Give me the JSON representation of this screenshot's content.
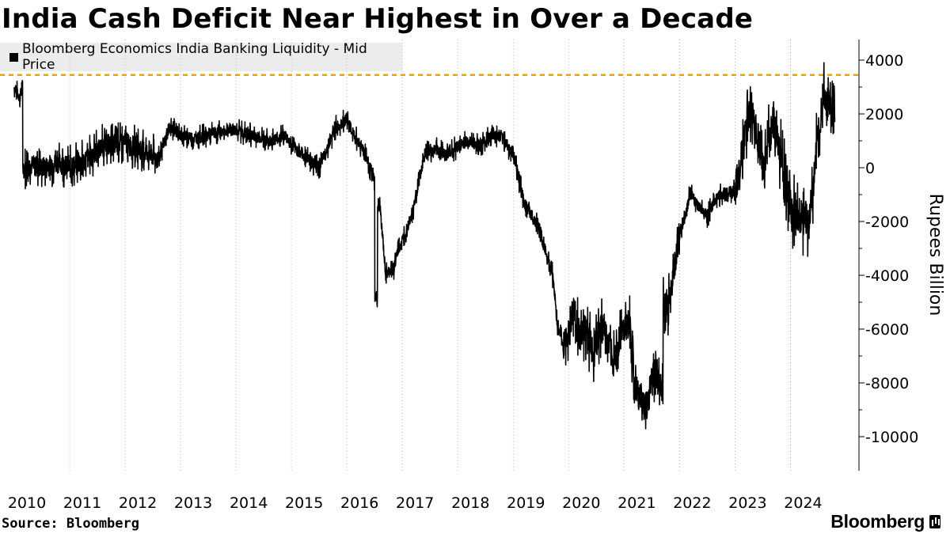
{
  "title": "India Cash Deficit Near Highest in Over a Decade",
  "source": "Source: Bloomberg",
  "brand": "Bloomberg",
  "chart_data": {
    "type": "line",
    "title": "India Cash Deficit Near Highest in Over a Decade",
    "ylabel": "Rupees Billion",
    "xlabel": "",
    "ylim": [
      -10800,
      4800
    ],
    "xlim": [
      2010.0,
      2024.85
    ],
    "y_ticks": [
      4000,
      2000,
      0,
      -2000,
      -4000,
      -6000,
      -8000,
      -10000
    ],
    "y_tick_labels": [
      "4000",
      "2000",
      "0",
      "-2000",
      "-4000",
      "-6000",
      "-8000",
      "-10000"
    ],
    "x_ticks": [
      2010,
      2011,
      2012,
      2013,
      2014,
      2015,
      2016,
      2017,
      2018,
      2019,
      2020,
      2021,
      2022,
      2023,
      2024
    ],
    "x_tick_labels": [
      "2010",
      "2011",
      "2012",
      "2013",
      "2014",
      "2015",
      "2016",
      "2017",
      "2018",
      "2019",
      "2020",
      "2021",
      "2022",
      "2023",
      "2024"
    ],
    "grid": "vertical dotted",
    "legend": "top-left",
    "reference_line": {
      "y": 3450,
      "color": "#f4a100",
      "style": "dashed"
    },
    "series": [
      {
        "name": "Bloomberg Economics India Banking Liquidity - Mid Price",
        "color": "#000000",
        "x": [
          2010.0,
          2010.1,
          2010.15,
          2010.17,
          2010.3,
          2010.5,
          2010.8,
          2011.0,
          2011.3,
          2011.6,
          2012.0,
          2012.3,
          2012.6,
          2012.8,
          2013.0,
          2013.3,
          2013.6,
          2014.0,
          2014.3,
          2014.6,
          2014.9,
          2015.0,
          2015.2,
          2015.5,
          2015.8,
          2016.0,
          2016.1,
          2016.3,
          2016.5,
          2016.55,
          2016.6,
          2016.7,
          2016.85,
          2016.9,
          2017.0,
          2017.2,
          2017.4,
          2017.6,
          2017.8,
          2018.0,
          2018.2,
          2018.4,
          2018.6,
          2018.8,
          2019.0,
          2019.2,
          2019.4,
          2019.55,
          2019.7,
          2019.8,
          2019.9,
          2020.0,
          2020.1,
          2020.2,
          2020.3,
          2020.45,
          2020.5,
          2020.6,
          2020.8,
          2021.0,
          2021.1,
          2021.2,
          2021.4,
          2021.5,
          2021.6,
          2021.7,
          2021.8,
          2021.9,
          2022.0,
          2022.1,
          2022.2,
          2022.35,
          2022.5,
          2022.7,
          2022.9,
          2023.0,
          2023.15,
          2023.3,
          2023.5,
          2023.7,
          2023.8,
          2024.0,
          2024.2,
          2024.35,
          2024.45,
          2024.5,
          2024.6,
          2024.7,
          2024.8
        ],
        "values": [
          3000,
          2600,
          3100,
          0,
          100,
          0,
          200,
          0,
          300,
          800,
          900,
          700,
          300,
          1500,
          1200,
          1100,
          1300,
          1400,
          1200,
          1000,
          1200,
          800,
          500,
          0,
          1500,
          1800,
          1300,
          700,
          -500,
          -4800,
          -1500,
          -4000,
          -3700,
          -3200,
          -2700,
          -1500,
          500,
          700,
          500,
          800,
          1000,
          800,
          1200,
          1100,
          500,
          -1300,
          -2000,
          -2900,
          -3800,
          -5800,
          -6600,
          -6200,
          -5200,
          -6300,
          -6000,
          -6900,
          -6500,
          -5900,
          -7000,
          -6000,
          -5800,
          -8300,
          -9000,
          -7800,
          -7500,
          -8300,
          -5200,
          -3700,
          -2400,
          -1800,
          -900,
          -1500,
          -1800,
          -1000,
          -900,
          -900,
          800,
          2300,
          100,
          1700,
          700,
          -1500,
          -1800,
          -2000,
          300,
          1100,
          2800,
          2200,
          1700
        ]
      }
    ]
  }
}
